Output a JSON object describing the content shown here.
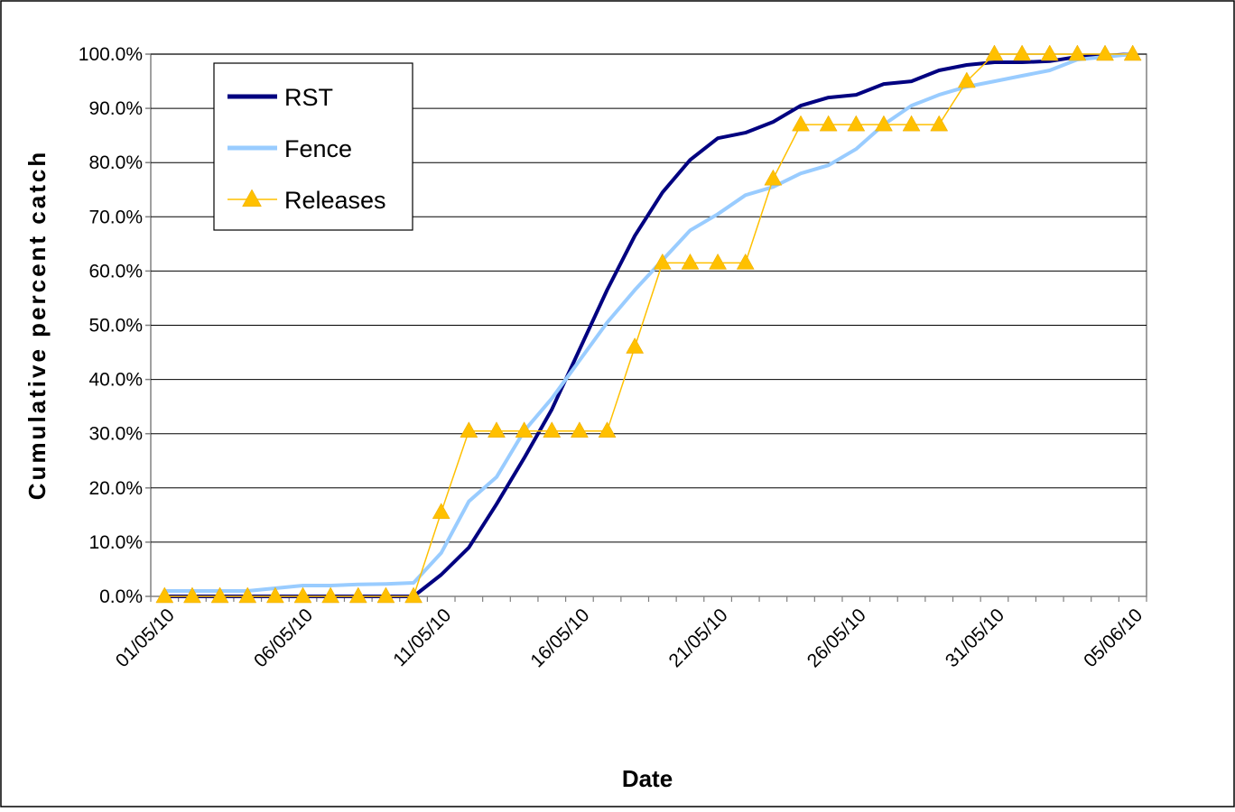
{
  "chart_data": {
    "type": "line",
    "title": "",
    "xlabel": "Date",
    "ylabel": "Cumulative percent catch",
    "ylim": [
      0,
      100
    ],
    "y_ticks": [
      "0.0%",
      "10.0%",
      "20.0%",
      "30.0%",
      "40.0%",
      "50.0%",
      "60.0%",
      "70.0%",
      "80.0%",
      "90.0%",
      "100.0%"
    ],
    "x_tick_labels": [
      "01/05/10",
      "06/05/10",
      "11/05/10",
      "16/05/10",
      "21/05/10",
      "26/05/10",
      "31/05/10",
      "05/06/10"
    ],
    "x": [
      "01/05/10",
      "02/05/10",
      "03/05/10",
      "04/05/10",
      "05/05/10",
      "06/05/10",
      "07/05/10",
      "08/05/10",
      "09/05/10",
      "10/05/10",
      "11/05/10",
      "12/05/10",
      "13/05/10",
      "14/05/10",
      "15/05/10",
      "16/05/10",
      "17/05/10",
      "18/05/10",
      "19/05/10",
      "20/05/10",
      "21/05/10",
      "22/05/10",
      "23/05/10",
      "24/05/10",
      "25/05/10",
      "26/05/10",
      "27/05/10",
      "28/05/10",
      "29/05/10",
      "30/05/10",
      "31/05/10",
      "01/06/10",
      "02/06/10",
      "03/06/10",
      "04/06/10",
      "05/06/10"
    ],
    "grid": true,
    "legend_position": "top-left",
    "series": [
      {
        "name": "RST",
        "color": "#000080",
        "marker": "none",
        "values": [
          0.0,
          0.0,
          0.0,
          0.0,
          0.0,
          0.0,
          0.0,
          0.0,
          0.0,
          0.0,
          4.0,
          9.0,
          17.0,
          25.5,
          34.5,
          45.5,
          56.5,
          66.5,
          74.5,
          80.5,
          84.5,
          85.5,
          87.5,
          90.5,
          92.0,
          92.5,
          94.5,
          95.0,
          97.0,
          98.0,
          98.5,
          98.5,
          98.7,
          99.5,
          99.7,
          100.0
        ]
      },
      {
        "name": "Fence",
        "color": "#99CCFF",
        "marker": "none",
        "values": [
          1.0,
          1.0,
          1.0,
          1.0,
          1.5,
          2.0,
          2.0,
          2.2,
          2.3,
          2.5,
          8.0,
          17.5,
          22.0,
          30.5,
          36.5,
          43.5,
          50.5,
          56.5,
          62.0,
          67.5,
          70.5,
          74.0,
          75.5,
          78.0,
          79.5,
          82.5,
          87.0,
          90.5,
          92.5,
          94.0,
          95.0,
          96.0,
          97.0,
          99.0,
          99.5,
          100.0
        ]
      },
      {
        "name": "Releases",
        "color": "#FFC000",
        "marker": "triangle",
        "values": [
          0.0,
          0.0,
          0.0,
          0.0,
          0.0,
          0.0,
          0.0,
          0.0,
          0.0,
          0.0,
          15.5,
          30.5,
          30.5,
          30.5,
          30.5,
          30.5,
          30.5,
          46.0,
          61.5,
          61.5,
          61.5,
          61.5,
          77.0,
          87.0,
          87.0,
          87.0,
          87.0,
          87.0,
          87.0,
          95.0,
          100.0,
          100.0,
          100.0,
          100.0,
          100.0,
          100.0
        ]
      }
    ]
  }
}
